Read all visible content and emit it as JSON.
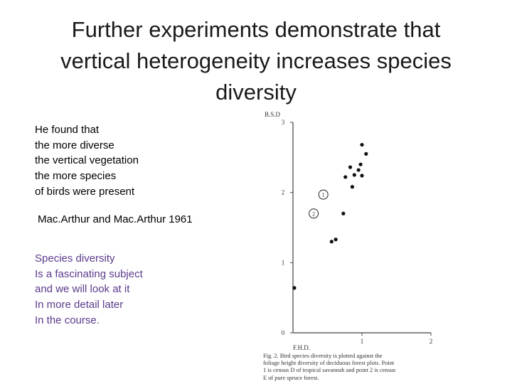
{
  "slide": {
    "title_lines": [
      "Further experiments demonstrate that",
      "vertical heterogeneity increases species",
      "diversity"
    ],
    "finding_lines": [
      "He found that",
      "the more diverse",
      "the vertical vegetation",
      "the more species",
      "of birds were present"
    ],
    "citation": "Mac.Arthur and Mac.Arthur 1961",
    "aside_lines": [
      "Species diversity",
      "Is a fascinating subject",
      "and we will look at it",
      "In more detail later",
      "In the course."
    ],
    "aside_color": "#5b3a8c"
  },
  "chart_data": {
    "type": "scatter",
    "xlabel": "F.H.D.",
    "ylabel": "B.S.D",
    "xlim": [
      0,
      2
    ],
    "ylim": [
      0,
      3
    ],
    "x_ticks": [
      "1",
      "2"
    ],
    "y_ticks": [
      "0",
      "1",
      "2",
      "3"
    ],
    "points": [
      {
        "x": 1.0,
        "y": 2.68
      },
      {
        "x": 1.06,
        "y": 2.55
      },
      {
        "x": 0.98,
        "y": 2.4
      },
      {
        "x": 0.83,
        "y": 2.36
      },
      {
        "x": 0.95,
        "y": 2.32
      },
      {
        "x": 0.89,
        "y": 2.25
      },
      {
        "x": 0.76,
        "y": 2.22
      },
      {
        "x": 1.0,
        "y": 2.24
      },
      {
        "x": 0.86,
        "y": 2.08
      },
      {
        "x": 0.73,
        "y": 1.7
      },
      {
        "x": 0.56,
        "y": 1.3
      },
      {
        "x": 0.62,
        "y": 1.33
      },
      {
        "x": 0.02,
        "y": 0.64
      }
    ],
    "special_points": [
      {
        "label": "1",
        "x": 0.44,
        "y": 1.97
      },
      {
        "label": "2",
        "x": 0.3,
        "y": 1.7
      }
    ],
    "caption_lines": [
      "Fig. 2.  Bird species diversity is plotted against the",
      "foliage height diversity of deciduous forest plots.  Point",
      "1 is census D of tropical savannah and point 2 is census",
      "E of pure spruce forest."
    ]
  }
}
